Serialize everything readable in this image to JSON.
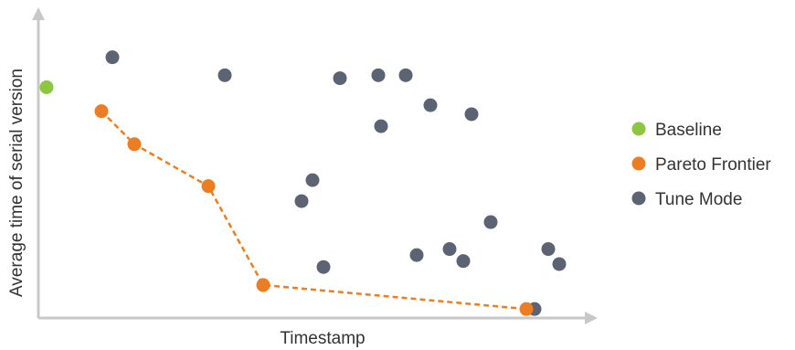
{
  "chart_data": {
    "type": "scatter",
    "title": "",
    "xlabel": "Timestamp",
    "ylabel": "Average time of serial version",
    "xlim": [
      0,
      100
    ],
    "ylim": [
      0,
      100
    ],
    "grid": false,
    "legend": "right",
    "series": [
      {
        "name": "Baseline",
        "color": "#8dc63f",
        "points": [
          [
            1.5,
            77
          ]
        ]
      },
      {
        "name": "Pareto Frontier",
        "color": "#ed7d22",
        "line": "dashed",
        "points": [
          [
            11.5,
            69
          ],
          [
            17.5,
            58
          ],
          [
            31,
            44
          ],
          [
            41,
            11
          ],
          [
            89,
            3
          ]
        ]
      },
      {
        "name": "Tune Mode",
        "color": "#5c6473",
        "points": [
          [
            13.5,
            87
          ],
          [
            34,
            81
          ],
          [
            48,
            39
          ],
          [
            50,
            46
          ],
          [
            52,
            17
          ],
          [
            55,
            80
          ],
          [
            62,
            81
          ],
          [
            62.5,
            64
          ],
          [
            67,
            81
          ],
          [
            69,
            21
          ],
          [
            71.5,
            71
          ],
          [
            75,
            23
          ],
          [
            77.5,
            19
          ],
          [
            79,
            68
          ],
          [
            82.5,
            32
          ],
          [
            90.5,
            3
          ],
          [
            93,
            23
          ],
          [
            95,
            18
          ]
        ]
      }
    ]
  }
}
